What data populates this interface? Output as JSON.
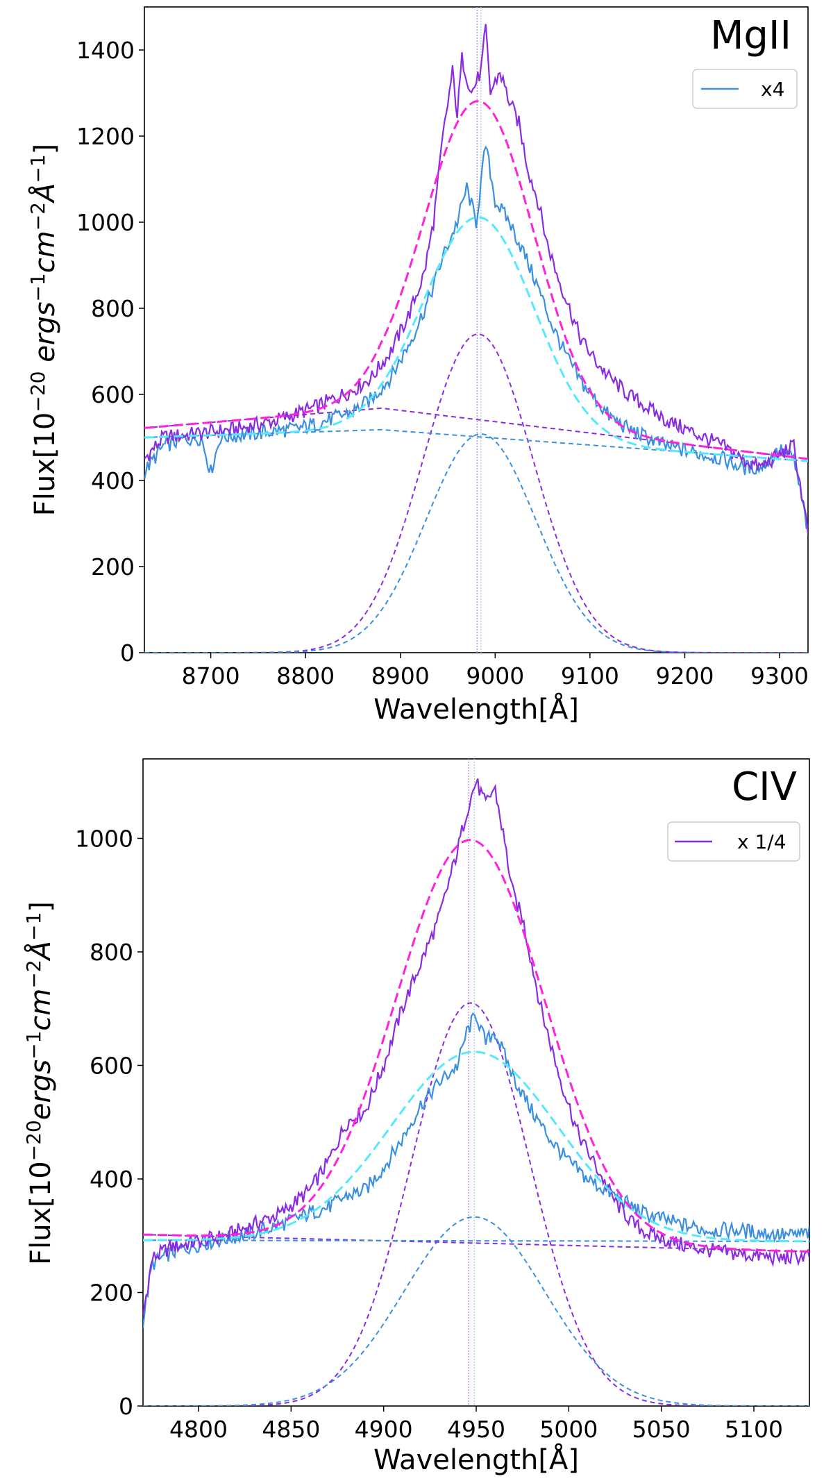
{
  "chart_data": [
    {
      "type": "line",
      "title": "MgII",
      "xlabel": "Wavelength[Å]",
      "ylabel_parts": {
        "base": "Flux[10",
        "exp1": "−20",
        "mid": " ergs",
        "exp2": "−1",
        "mid2": "cm",
        "exp3": "−2",
        "mid3": "Å",
        "exp4": "−1",
        "end": "]"
      },
      "xlim": [
        8630,
        9330
      ],
      "ylim": [
        0,
        1500
      ],
      "xticks": [
        8700,
        8800,
        8900,
        9000,
        9100,
        9200,
        9300
      ],
      "yticks": [
        0,
        200,
        400,
        600,
        800,
        1000,
        1200,
        1400
      ],
      "legend": {
        "label": "x4",
        "color": "#3a8fe0",
        "placement": "top-right"
      },
      "center_lines": [
        8981,
        8985
      ],
      "colors": {
        "spec_a": "#8a2be2",
        "spec_b": "#3a8fe0",
        "fit_a": "#ff22dd",
        "fit_b": "#55e8ff",
        "gauss_a": "#8a2be2",
        "gauss_b": "#3a8fe0"
      },
      "spectrum_a_points": [
        [
          8630,
          450
        ],
        [
          8650,
          500
        ],
        [
          8670,
          505
        ],
        [
          8690,
          510
        ],
        [
          8710,
          515
        ],
        [
          8730,
          520
        ],
        [
          8750,
          530
        ],
        [
          8770,
          540
        ],
        [
          8790,
          555
        ],
        [
          8810,
          570
        ],
        [
          8830,
          590
        ],
        [
          8850,
          610
        ],
        [
          8870,
          640
        ],
        [
          8890,
          700
        ],
        [
          8910,
          790
        ],
        [
          8925,
          880
        ],
        [
          8935,
          1000
        ],
        [
          8945,
          1200
        ],
        [
          8955,
          1350
        ],
        [
          8960,
          1250
        ],
        [
          8965,
          1380
        ],
        [
          8975,
          1300
        ],
        [
          8985,
          1350
        ],
        [
          8990,
          1450
        ],
        [
          8995,
          1300
        ],
        [
          9005,
          1350
        ],
        [
          9015,
          1280
        ],
        [
          9025,
          1230
        ],
        [
          9035,
          1120
        ],
        [
          9045,
          1050
        ],
        [
          9055,
          950
        ],
        [
          9065,
          880
        ],
        [
          9075,
          820
        ],
        [
          9090,
          730
        ],
        [
          9105,
          680
        ],
        [
          9120,
          640
        ],
        [
          9140,
          600
        ],
        [
          9160,
          570
        ],
        [
          9180,
          540
        ],
        [
          9200,
          520
        ],
        [
          9220,
          500
        ],
        [
          9240,
          480
        ],
        [
          9260,
          450
        ],
        [
          9280,
          430
        ],
        [
          9300,
          460
        ],
        [
          9315,
          480
        ],
        [
          9330,
          280
        ]
      ],
      "spectrum_b_points": [
        [
          8630,
          420
        ],
        [
          8650,
          480
        ],
        [
          8670,
          495
        ],
        [
          8690,
          500
        ],
        [
          8700,
          420
        ],
        [
          8710,
          500
        ],
        [
          8730,
          505
        ],
        [
          8750,
          510
        ],
        [
          8770,
          515
        ],
        [
          8790,
          520
        ],
        [
          8810,
          530
        ],
        [
          8830,
          545
        ],
        [
          8850,
          560
        ],
        [
          8870,
          590
        ],
        [
          8890,
          640
        ],
        [
          8910,
          720
        ],
        [
          8930,
          820
        ],
        [
          8945,
          920
        ],
        [
          8960,
          1000
        ],
        [
          8970,
          1080
        ],
        [
          8980,
          1000
        ],
        [
          8990,
          1180
        ],
        [
          9000,
          1050
        ],
        [
          9015,
          1000
        ],
        [
          9030,
          930
        ],
        [
          9045,
          850
        ],
        [
          9060,
          760
        ],
        [
          9075,
          690
        ],
        [
          9090,
          630
        ],
        [
          9105,
          590
        ],
        [
          9120,
          550
        ],
        [
          9140,
          520
        ],
        [
          9160,
          500
        ],
        [
          9180,
          480
        ],
        [
          9200,
          470
        ],
        [
          9220,
          460
        ],
        [
          9240,
          450
        ],
        [
          9260,
          430
        ],
        [
          9280,
          430
        ],
        [
          9300,
          470
        ],
        [
          9315,
          450
        ],
        [
          9330,
          280
        ]
      ],
      "fit_total": {
        "baseline": [
          [
            8630,
            522
          ],
          [
            8880,
            568
          ],
          [
            9330,
            450
          ]
        ],
        "amp": 740,
        "mu": 8983,
        "sigma": 58,
        "scale": 1.0
      },
      "fit_b_total": {
        "baseline": [
          [
            8630,
            500
          ],
          [
            8880,
            518
          ],
          [
            9330,
            445
          ]
        ],
        "amp": 510,
        "mu": 8983,
        "sigma": 58
      },
      "gauss_a": {
        "amp": 740,
        "mu": 8982,
        "sigma": 58
      },
      "gauss_b": {
        "amp": 508,
        "mu": 8985,
        "sigma": 58
      },
      "cont_a": [
        [
          8630,
          522
        ],
        [
          8880,
          568
        ],
        [
          9330,
          450
        ]
      ],
      "cont_b": [
        [
          8630,
          500
        ],
        [
          8880,
          518
        ],
        [
          9330,
          445
        ]
      ]
    },
    {
      "type": "line",
      "title": "CIV",
      "xlabel": "Wavelength[Å]",
      "ylabel_parts": {
        "base": "Flux[10",
        "exp1": "−20",
        "mid": "ergs",
        "exp2": "−1",
        "mid2": "cm",
        "exp3": "−2",
        "mid3": "Å",
        "exp4": "−1",
        "end": "]"
      },
      "xlim": [
        4770,
        5130
      ],
      "ylim": [
        0,
        1140
      ],
      "xticks": [
        4800,
        4850,
        4900,
        4950,
        5000,
        5050,
        5100
      ],
      "yticks": [
        0,
        200,
        400,
        600,
        800,
        1000
      ],
      "legend": {
        "label": "x 1/4",
        "color": "#8a2be2",
        "placement": "top-right"
      },
      "center_lines": [
        4946,
        4949
      ],
      "colors": {
        "spec_a": "#8a2be2",
        "spec_b": "#3a8fe0",
        "fit_a": "#ff22dd",
        "fit_b": "#55e8ff",
        "gauss_a": "#8a2be2",
        "gauss_b": "#3a8fe0"
      },
      "spectrum_a_points": [
        [
          4770,
          160
        ],
        [
          4775,
          260
        ],
        [
          4785,
          280
        ],
        [
          4800,
          290
        ],
        [
          4815,
          300
        ],
        [
          4830,
          320
        ],
        [
          4845,
          340
        ],
        [
          4860,
          380
        ],
        [
          4870,
          430
        ],
        [
          4880,
          500
        ],
        [
          4890,
          520
        ],
        [
          4900,
          600
        ],
        [
          4910,
          700
        ],
        [
          4920,
          780
        ],
        [
          4930,
          860
        ],
        [
          4940,
          980
        ],
        [
          4945,
          1050
        ],
        [
          4950,
          1100
        ],
        [
          4955,
          1060
        ],
        [
          4960,
          1090
        ],
        [
          4965,
          1000
        ],
        [
          4970,
          900
        ],
        [
          4975,
          860
        ],
        [
          4985,
          700
        ],
        [
          4995,
          580
        ],
        [
          5005,
          480
        ],
        [
          5015,
          420
        ],
        [
          5025,
          360
        ],
        [
          5035,
          320
        ],
        [
          5045,
          300
        ],
        [
          5055,
          290
        ],
        [
          5065,
          280
        ],
        [
          5075,
          275
        ],
        [
          5085,
          270
        ],
        [
          5100,
          265
        ],
        [
          5115,
          260
        ],
        [
          5130,
          265
        ]
      ],
      "spectrum_b_points": [
        [
          4770,
          150
        ],
        [
          4775,
          250
        ],
        [
          4785,
          270
        ],
        [
          4800,
          285
        ],
        [
          4815,
          295
        ],
        [
          4830,
          305
        ],
        [
          4845,
          320
        ],
        [
          4860,
          340
        ],
        [
          4870,
          350
        ],
        [
          4880,
          370
        ],
        [
          4890,
          380
        ],
        [
          4900,
          420
        ],
        [
          4910,
          470
        ],
        [
          4920,
          530
        ],
        [
          4930,
          570
        ],
        [
          4940,
          600
        ],
        [
          4945,
          660
        ],
        [
          4950,
          690
        ],
        [
          4955,
          640
        ],
        [
          4960,
          660
        ],
        [
          4965,
          620
        ],
        [
          4970,
          580
        ],
        [
          4980,
          520
        ],
        [
          4990,
          470
        ],
        [
          5000,
          430
        ],
        [
          5010,
          400
        ],
        [
          5020,
          380
        ],
        [
          5030,
          360
        ],
        [
          5040,
          340
        ],
        [
          5050,
          330
        ],
        [
          5060,
          320
        ],
        [
          5075,
          310
        ],
        [
          5090,
          310
        ],
        [
          5105,
          305
        ],
        [
          5120,
          300
        ],
        [
          5130,
          305
        ]
      ],
      "fit_total": {
        "baseline": [
          [
            4770,
            302
          ],
          [
            5130,
            272
          ]
        ],
        "amp": 710,
        "mu": 4947,
        "sigma": 40
      },
      "fit_b_total": {
        "baseline": [
          [
            4770,
            292
          ],
          [
            5130,
            290
          ]
        ],
        "amp": 333,
        "mu": 4949,
        "sigma": 45
      },
      "gauss_a": {
        "amp": 710,
        "mu": 4947,
        "sigma": 32
      },
      "gauss_b": {
        "amp": 333,
        "mu": 4949,
        "sigma": 38
      },
      "cont_a": [
        [
          4770,
          302
        ],
        [
          5130,
          272
        ]
      ],
      "cont_b": [
        [
          4770,
          292
        ],
        [
          5130,
          290
        ]
      ]
    }
  ]
}
